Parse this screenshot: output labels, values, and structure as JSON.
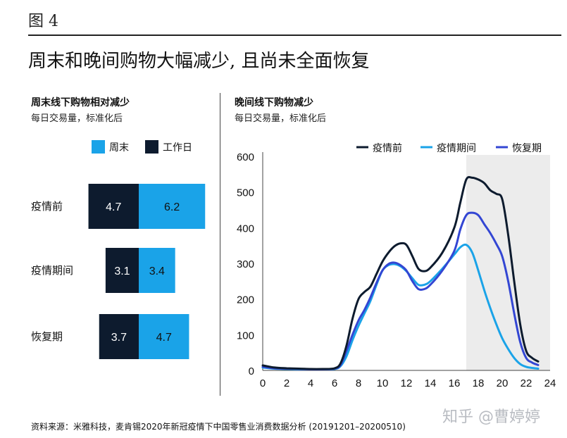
{
  "figure_label": "图 4",
  "title": "周末和晚间购物大幅减少, 且尚未全面恢复",
  "left_panel": {
    "title": "周末线下购物相对减少",
    "subtitle": "每日交易量，标准化后"
  },
  "right_panel": {
    "title": "晚间线下购物减少",
    "subtitle": "每日交易量，标准化后"
  },
  "source": "资料来源：米雅科技，麦肯锡2020年新冠疫情下中国零售业消费数据分析 (20191201–20200510)",
  "watermark": "知乎 @曹婷婷",
  "colors": {
    "navy": "#0d1b2e",
    "cyan": "#1aa3e8",
    "blue": "#3346d3",
    "shade": "#ececec"
  },
  "chart_data": [
    {
      "type": "bar",
      "orientation": "horizontal-diverging",
      "categories": [
        "疫情前",
        "疫情期间",
        "恢复期"
      ],
      "series": [
        {
          "name": "工作日",
          "values": [
            4.7,
            3.1,
            3.7
          ],
          "color": "#0d1b2e"
        },
        {
          "name": "周末",
          "values": [
            6.2,
            3.4,
            4.7
          ],
          "color": "#1aa3e8"
        }
      ],
      "legend_order": [
        "周末",
        "工作日"
      ],
      "legend_position": "top"
    },
    {
      "type": "line",
      "x_ticks": [
        0,
        2,
        4,
        6,
        8,
        10,
        12,
        14,
        16,
        18,
        20,
        22,
        24
      ],
      "y_ticks": [
        0,
        100,
        200,
        300,
        400,
        500,
        600
      ],
      "xlim": [
        0,
        24
      ],
      "ylim": [
        0,
        600
      ],
      "shaded_x_range": [
        17,
        24
      ],
      "legend_position": "top",
      "series": [
        {
          "name": "疫情前",
          "color": "#0d1b2e",
          "points": [
            [
              0,
              14
            ],
            [
              1,
              8
            ],
            [
              2,
              6
            ],
            [
              3,
              5
            ],
            [
              4,
              4
            ],
            [
              5,
              4
            ],
            [
              6,
              6
            ],
            [
              6.5,
              20
            ],
            [
              7,
              70
            ],
            [
              7.5,
              145
            ],
            [
              8,
              200
            ],
            [
              8.5,
              220
            ],
            [
              9,
              235
            ],
            [
              9.5,
              270
            ],
            [
              10,
              305
            ],
            [
              10.5,
              330
            ],
            [
              11,
              348
            ],
            [
              11.5,
              356
            ],
            [
              12,
              352
            ],
            [
              12.5,
              320
            ],
            [
              13,
              285
            ],
            [
              13.5,
              278
            ],
            [
              14,
              288
            ],
            [
              15,
              330
            ],
            [
              16,
              400
            ],
            [
              16.5,
              470
            ],
            [
              17,
              535
            ],
            [
              17.5,
              540
            ],
            [
              18,
              535
            ],
            [
              18.5,
              525
            ],
            [
              19,
              505
            ],
            [
              19.5,
              495
            ],
            [
              20,
              480
            ],
            [
              20.5,
              380
            ],
            [
              21,
              250
            ],
            [
              21.5,
              130
            ],
            [
              22,
              55
            ],
            [
              22.5,
              35
            ],
            [
              23,
              25
            ]
          ]
        },
        {
          "name": "疫情期间",
          "color": "#1aa3e8",
          "points": [
            [
              0,
              8
            ],
            [
              1,
              5
            ],
            [
              2,
              4
            ],
            [
              3,
              3
            ],
            [
              4,
              3
            ],
            [
              5,
              3
            ],
            [
              6,
              4
            ],
            [
              6.5,
              12
            ],
            [
              7,
              40
            ],
            [
              7.5,
              85
            ],
            [
              8,
              125
            ],
            [
              8.5,
              160
            ],
            [
              9,
              195
            ],
            [
              9.5,
              240
            ],
            [
              10,
              280
            ],
            [
              10.5,
              295
            ],
            [
              11,
              298
            ],
            [
              11.5,
              292
            ],
            [
              12,
              278
            ],
            [
              12.5,
              258
            ],
            [
              13,
              240
            ],
            [
              13.5,
              240
            ],
            [
              14,
              250
            ],
            [
              15,
              285
            ],
            [
              16,
              325
            ],
            [
              16.5,
              345
            ],
            [
              17,
              352
            ],
            [
              17.5,
              330
            ],
            [
              18,
              280
            ],
            [
              18.5,
              225
            ],
            [
              19,
              175
            ],
            [
              19.5,
              130
            ],
            [
              20,
              90
            ],
            [
              20.5,
              60
            ],
            [
              21,
              35
            ],
            [
              21.5,
              18
            ],
            [
              22,
              10
            ],
            [
              22.5,
              7
            ],
            [
              23,
              5
            ]
          ]
        },
        {
          "name": "恢复期",
          "color": "#3346d3",
          "points": [
            [
              0,
              10
            ],
            [
              1,
              6
            ],
            [
              2,
              5
            ],
            [
              3,
              4
            ],
            [
              4,
              3
            ],
            [
              5,
              3
            ],
            [
              6,
              5
            ],
            [
              6.5,
              15
            ],
            [
              7,
              55
            ],
            [
              7.5,
              100
            ],
            [
              8,
              140
            ],
            [
              8.5,
              170
            ],
            [
              9,
              205
            ],
            [
              9.5,
              245
            ],
            [
              10,
              280
            ],
            [
              10.5,
              298
            ],
            [
              11,
              302
            ],
            [
              11.5,
              295
            ],
            [
              12,
              280
            ],
            [
              12.5,
              250
            ],
            [
              13,
              228
            ],
            [
              13.5,
              228
            ],
            [
              14,
              240
            ],
            [
              15,
              280
            ],
            [
              16,
              335
            ],
            [
              16.5,
              395
            ],
            [
              17,
              435
            ],
            [
              17.5,
              442
            ],
            [
              18,
              435
            ],
            [
              18.5,
              410
            ],
            [
              19,
              385
            ],
            [
              19.5,
              355
            ],
            [
              20,
              320
            ],
            [
              20.5,
              250
            ],
            [
              21,
              160
            ],
            [
              21.5,
              80
            ],
            [
              22,
              35
            ],
            [
              22.5,
              22
            ],
            [
              23,
              15
            ]
          ]
        }
      ]
    }
  ]
}
